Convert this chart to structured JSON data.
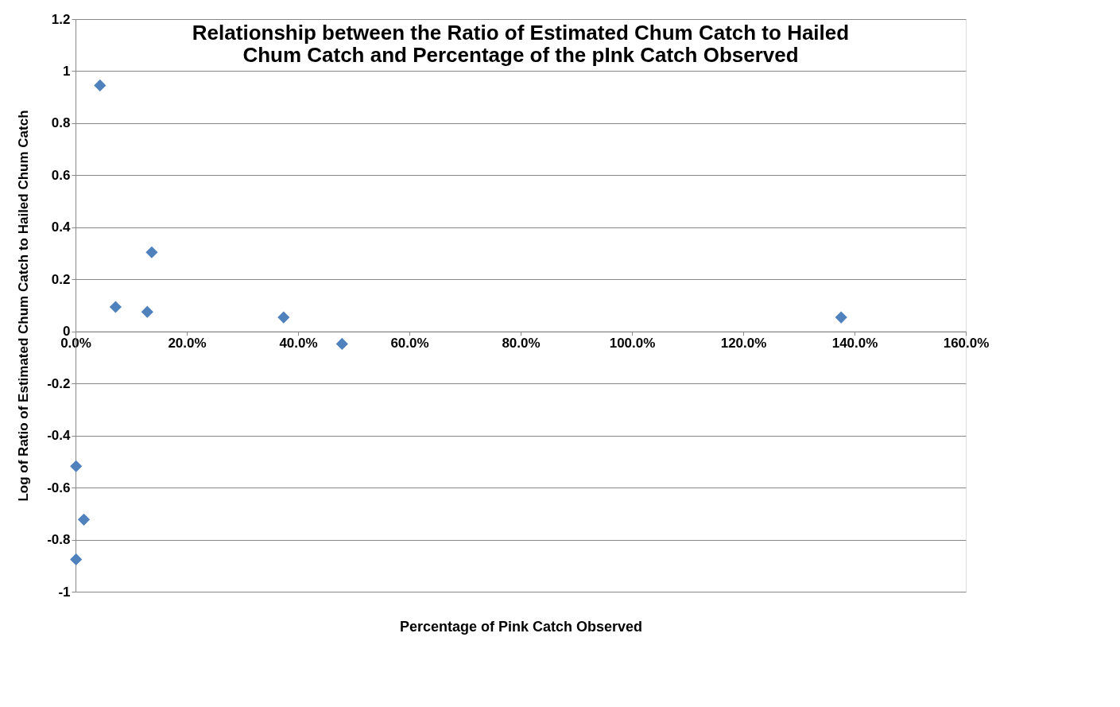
{
  "chart_data": {
    "type": "scatter",
    "title": [
      "Relationship between the Ratio of Estimated Chum Catch to Hailed",
      "Chum Catch and Percentage of the pInk Catch Observed"
    ],
    "xlabel": "Percentage of Pink Catch Observed",
    "ylabel": "Log of Ratio of Estimated Chum Catch to Hailed Chum Catch",
    "x": [
      4.4,
      13.7,
      7.2,
      12.9,
      37.4,
      47.9,
      137.6,
      0.1,
      1.5,
      0.1
    ],
    "series": [
      {
        "color": "#4f81bd",
        "values": [
          0.945,
          0.304,
          0.094,
          0.075,
          0.054,
          -0.048,
          0.054,
          -0.518,
          -0.723,
          -0.876
        ]
      }
    ],
    "xlim": [
      0,
      160
    ],
    "xticks": [
      {
        "value": 0,
        "label": "0.0%"
      },
      {
        "value": 20,
        "label": "20.0%"
      },
      {
        "value": 40,
        "label": "40.0%"
      },
      {
        "value": 60,
        "label": "60.0%"
      },
      {
        "value": 80,
        "label": "80.0%"
      },
      {
        "value": 100,
        "label": "100.0%"
      },
      {
        "value": 120,
        "label": "120.0%"
      },
      {
        "value": 140,
        "label": "140.0%"
      },
      {
        "value": 160,
        "label": "160.0%"
      }
    ],
    "ylim": [
      -1,
      1.2
    ],
    "yticks": [
      -1,
      -0.8,
      -0.6,
      -0.4,
      -0.2,
      0,
      0.2,
      0.4,
      0.6,
      0.8,
      1,
      1.2
    ],
    "grid": "y",
    "marker": "diamond"
  }
}
